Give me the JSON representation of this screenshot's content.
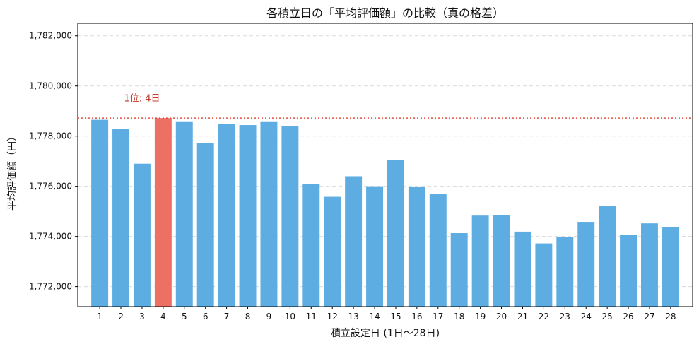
{
  "chart_data": {
    "type": "bar",
    "title": "各積立日の「平均評価額」の比較（真の格差）",
    "xlabel": "積立設定日 (1日〜28日)",
    "ylabel": "平均評価額（円）",
    "categories": [
      "1",
      "2",
      "3",
      "4",
      "5",
      "6",
      "7",
      "8",
      "9",
      "10",
      "11",
      "12",
      "13",
      "14",
      "15",
      "16",
      "17",
      "18",
      "19",
      "20",
      "21",
      "22",
      "23",
      "24",
      "25",
      "26",
      "27",
      "28"
    ],
    "values": [
      1778650,
      1778300,
      1776900,
      1778720,
      1778590,
      1777720,
      1778470,
      1778440,
      1778590,
      1778390,
      1776090,
      1775580,
      1776400,
      1776000,
      1777050,
      1775980,
      1775680,
      1774130,
      1774830,
      1774860,
      1774190,
      1773720,
      1773990,
      1774580,
      1775220,
      1774050,
      1774520,
      1774380
    ],
    "highlight_index": 3,
    "ylim": [
      1771200,
      1782500
    ],
    "yticks": [
      1772000,
      1774000,
      1776000,
      1778000,
      1780000,
      1782000
    ],
    "ytick_labels": [
      "1,772,000",
      "1,774,000",
      "1,776,000",
      "1,778,000",
      "1,780,000",
      "1,782,000"
    ],
    "reference_line": {
      "value": 1778720,
      "style": "dotted"
    },
    "annotation": {
      "text": "1位: 4日",
      "category_index": 3,
      "value": 1779500
    },
    "grid": {
      "y": true,
      "x": false
    },
    "colors": {
      "bar": "#5dade2",
      "highlight": "#ec7063",
      "reference": "#e74c3c",
      "annotation": "#c0392b"
    }
  }
}
